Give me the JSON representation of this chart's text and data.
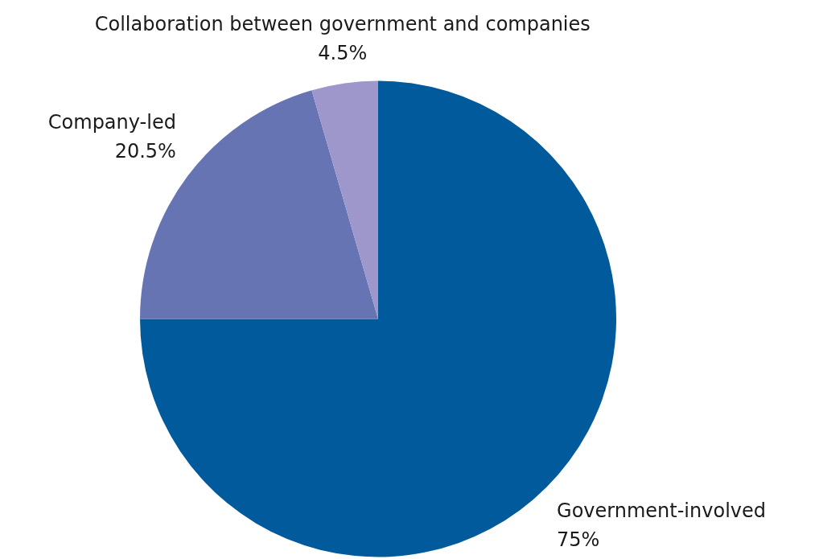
{
  "chart_data": {
    "type": "pie",
    "categories": [
      "Government-involved",
      "Company-led",
      "Collaboration between government and companies"
    ],
    "values": [
      75,
      20.5,
      4.5
    ],
    "value_labels": [
      "75%",
      "20.5%",
      "4.5%"
    ],
    "colors": [
      "#005a9c",
      "#6674b4",
      "#9e97cc"
    ],
    "legend": false
  }
}
